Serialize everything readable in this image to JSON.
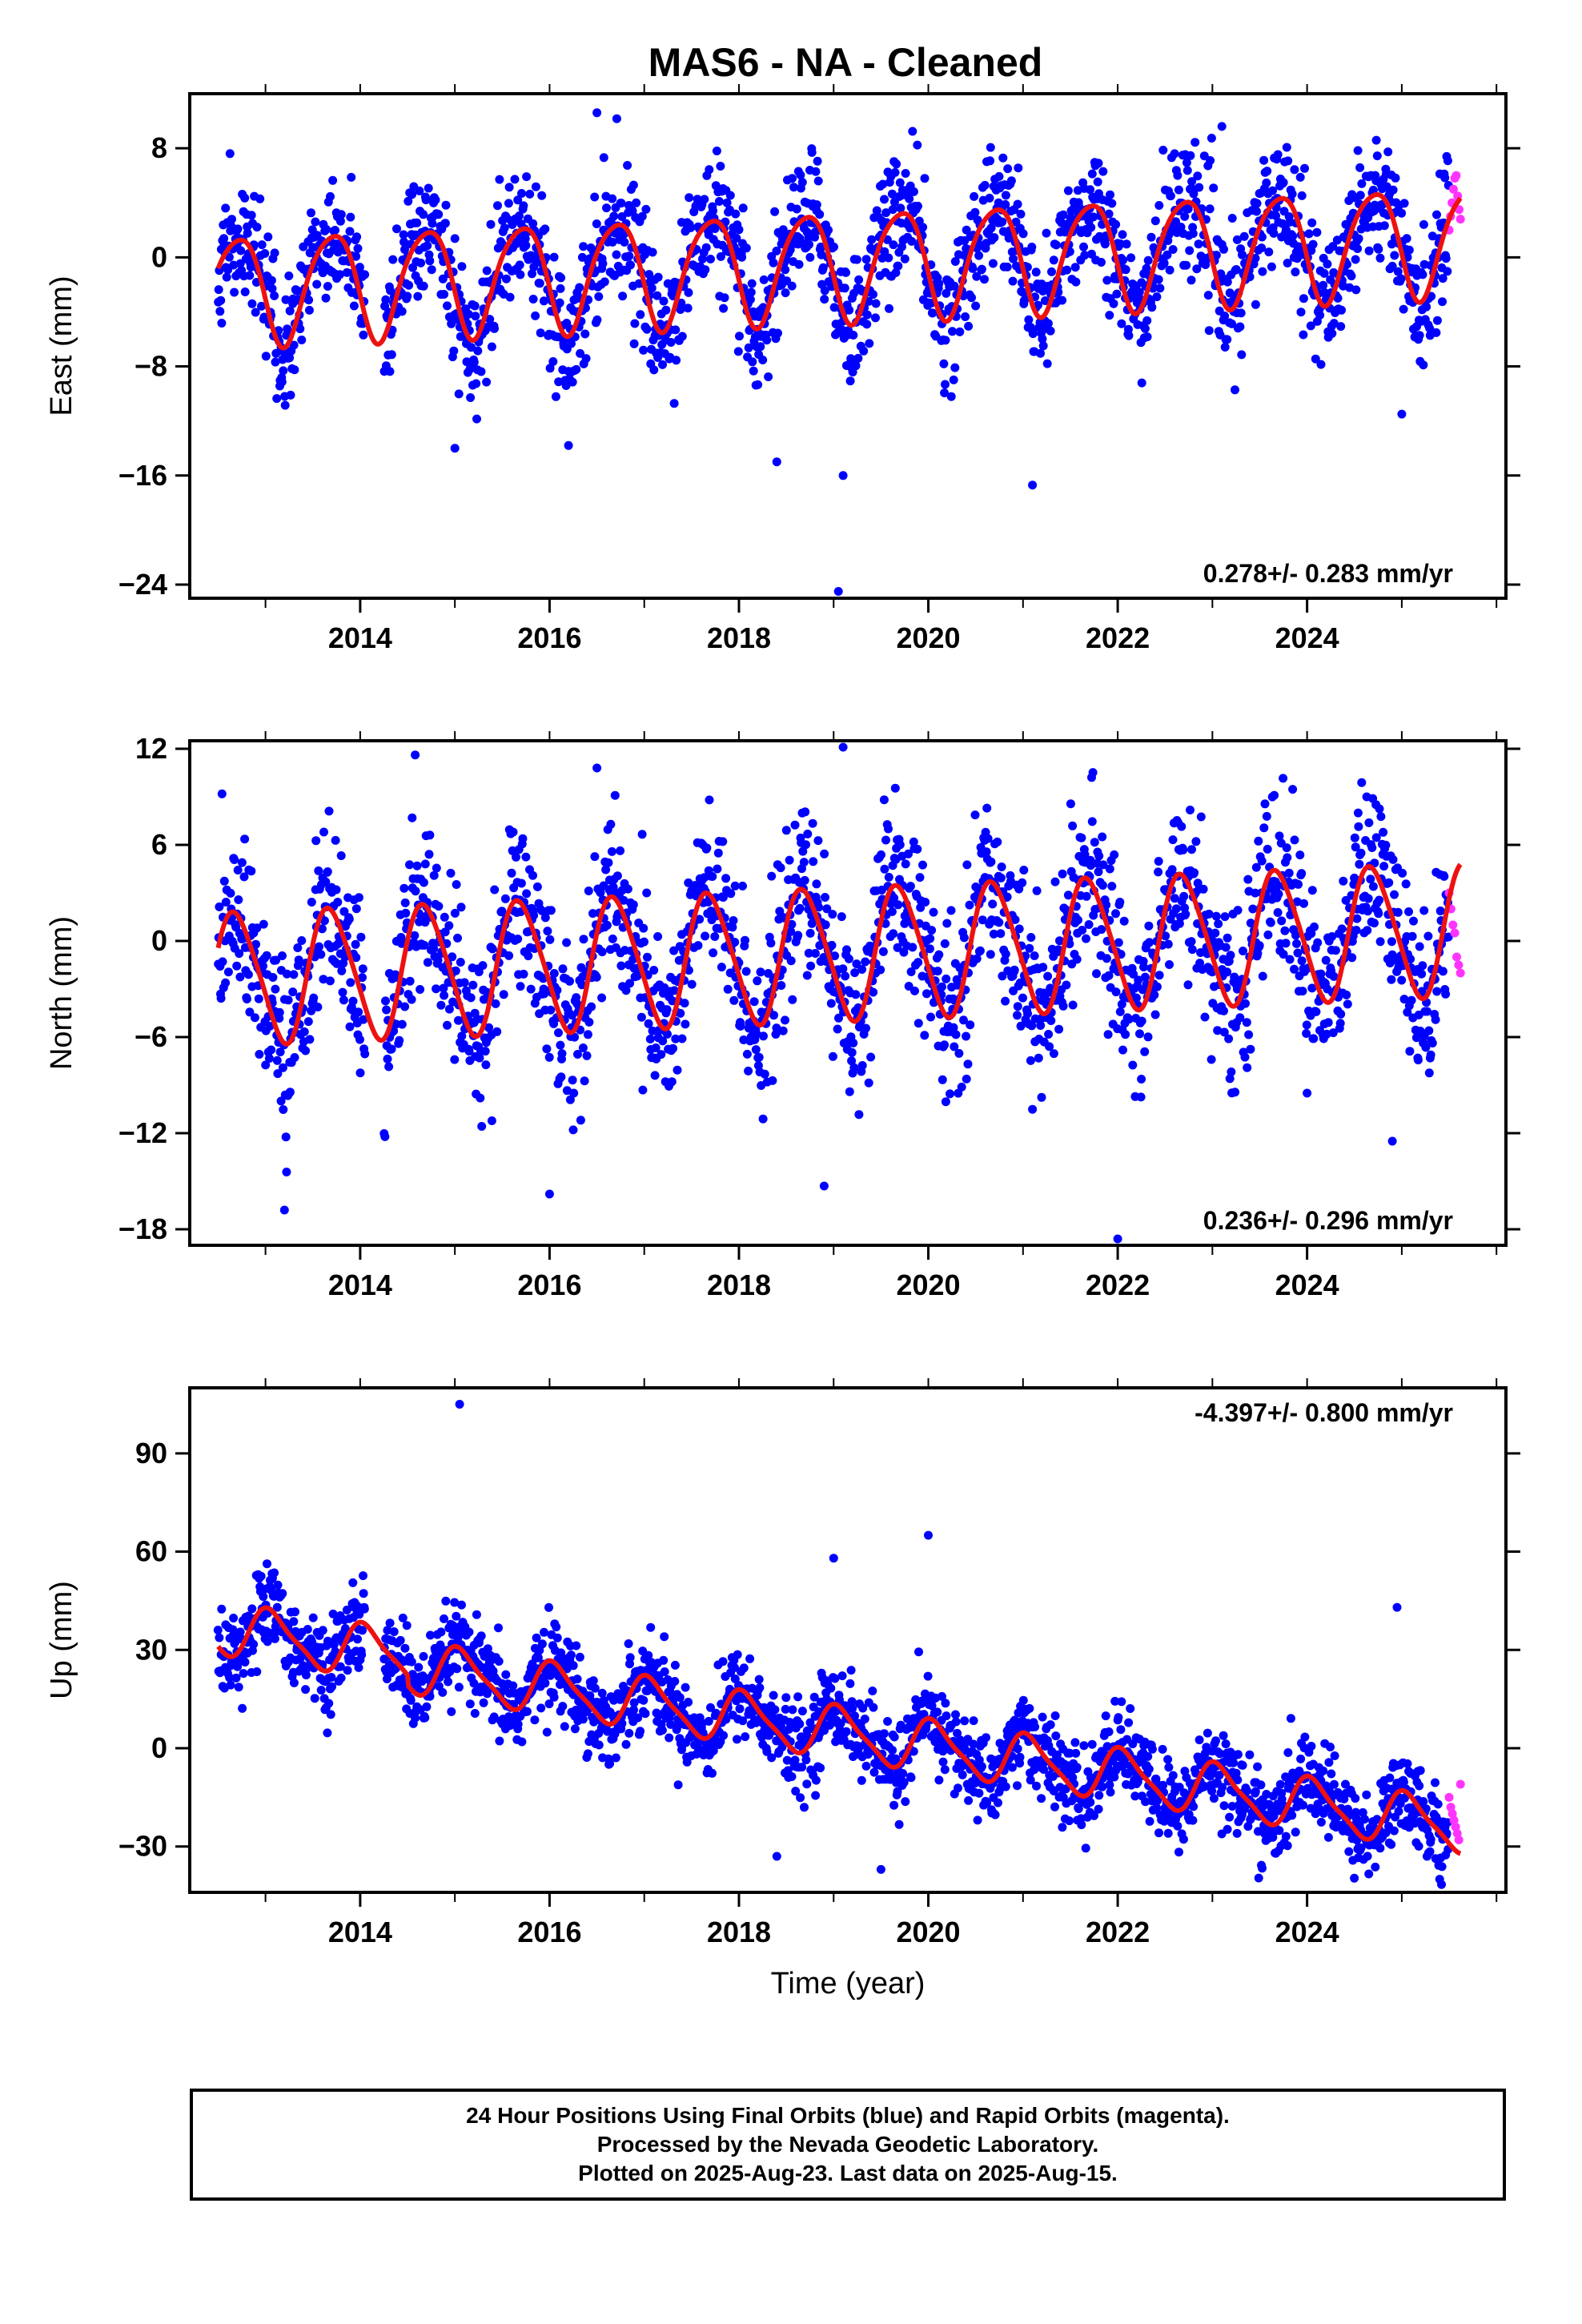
{
  "title": "MAS6  - NA - Cleaned",
  "colors": {
    "final_orbits": "#0000ff",
    "rapid_orbits": "#ff33ff",
    "model": "#ee1111",
    "frame": "#000000"
  },
  "chart_data": [
    {
      "type": "scatter",
      "component": "east",
      "ylabel": "East (mm)",
      "xlabel": "",
      "xlim": [
        2012.2,
        2026.1
      ],
      "ylim": [
        -25,
        12
      ],
      "xticks": [
        2014,
        2016,
        2018,
        2020,
        2022,
        2024
      ],
      "yticks": [
        8,
        0,
        -8,
        -16,
        -24
      ],
      "rate_label": "0.278+/- 0.283 mm/yr",
      "rate_position": "bottom-right",
      "model": {
        "t0": 2019.0,
        "intercept": -0.5,
        "rate_mm_per_yr": 0.278,
        "annual_cos": -1.2,
        "annual_sin": -3.8,
        "semiannual_cos": 0.3,
        "semiannual_sin": -0.5,
        "start": 2012.5,
        "end": 2025.62,
        "jumps": [
          {
            "year": 2014.5,
            "offset": 0.0
          }
        ]
      },
      "cloud": {
        "noise_mm": 2.3,
        "n": 2000,
        "start": 2012.5,
        "end": 2025.5
      },
      "rapid_points": {
        "start": 2025.5,
        "end": 2025.62,
        "values": [
          2,
          3,
          4,
          5,
          5.8,
          6,
          4.5,
          3.5,
          2.8
        ]
      },
      "gaps": [
        [
          2014.05,
          2014.25
        ]
      ],
      "outliers": [
        [
          2018.4,
          -15
        ],
        [
          2019.1,
          -16
        ],
        [
          2019.05,
          -24.5
        ],
        [
          2021.1,
          -16.7
        ],
        [
          2015.0,
          -14
        ],
        [
          2016.2,
          -13.8
        ],
        [
          2016.5,
          10.6
        ],
        [
          2023.1,
          9.6
        ],
        [
          2025.0,
          -11.5
        ]
      ]
    },
    {
      "type": "scatter",
      "component": "north",
      "ylabel": "North (mm)",
      "xlabel": "",
      "xlim": [
        2012.2,
        2026.1
      ],
      "ylim": [
        -19,
        12.5
      ],
      "xticks": [
        2014,
        2016,
        2018,
        2020,
        2022,
        2024
      ],
      "yticks": [
        12,
        6,
        0,
        -6,
        -12,
        -18
      ],
      "rate_label": "0.236+/- 0.296 mm/yr",
      "rate_position": "bottom-right",
      "model": {
        "t0": 2019.0,
        "intercept": -0.8,
        "rate_mm_per_yr": 0.236,
        "annual_cos": -1.5,
        "annual_sin": -3.8,
        "semiannual_cos": 0.4,
        "semiannual_sin": 0.3,
        "start": 2012.5,
        "end": 2025.62,
        "jumps": []
      },
      "cloud": {
        "noise_mm": 2.6,
        "n": 2000,
        "start": 2012.5,
        "end": 2025.5
      },
      "rapid_points": {
        "start": 2025.5,
        "end": 2025.62,
        "values": [
          3,
          2,
          1,
          0.5,
          -1,
          -1.5,
          -2
        ]
      },
      "gaps": [
        [
          2014.05,
          2014.25
        ]
      ],
      "outliers": [
        [
          2019.1,
          12.1
        ],
        [
          2022.0,
          -18.6
        ],
        [
          2013.2,
          -16.8
        ],
        [
          2016.0,
          -15.8
        ],
        [
          2018.9,
          -15.3
        ],
        [
          2016.5,
          10.8
        ],
        [
          2024.0,
          -9.5
        ],
        [
          2024.9,
          -12.5
        ]
      ]
    },
    {
      "type": "scatter",
      "component": "up",
      "ylabel": "Up (mm)",
      "xlabel": "Time (year)",
      "xlim": [
        2012.2,
        2026.1
      ],
      "ylim": [
        -44,
        110
      ],
      "xticks": [
        2014,
        2016,
        2018,
        2020,
        2022,
        2024
      ],
      "yticks": [
        90,
        60,
        30,
        0,
        -30
      ],
      "rate_label": "-4.397+/- 0.800 mm/yr",
      "rate_position": "top-right",
      "model": {
        "t0": 2019.0,
        "intercept": 8.0,
        "rate_mm_per_yr": -4.397,
        "annual_cos": 7.0,
        "annual_sin": 3.0,
        "semiannual_cos": 1.5,
        "semiannual_sin": -1.0,
        "start": 2012.5,
        "end": 2025.62,
        "jumps": [
          {
            "year": 2014.5,
            "offset": -3.0
          }
        ]
      },
      "cloud": {
        "noise_mm": 6.5,
        "n": 2100,
        "start": 2012.5,
        "end": 2025.5
      },
      "rapid_points": {
        "start": 2025.5,
        "end": 2025.62,
        "values": [
          -15,
          -18,
          -20,
          -22,
          -24,
          -26,
          -28,
          -11
        ]
      },
      "gaps": [
        [
          2014.05,
          2014.25
        ]
      ],
      "outliers": [
        [
          2015.05,
          105
        ],
        [
          2019.0,
          58
        ],
        [
          2020.0,
          65
        ],
        [
          2024.95,
          43
        ],
        [
          2018.4,
          -33
        ],
        [
          2019.5,
          -37
        ],
        [
          2025.4,
          -40
        ]
      ]
    }
  ],
  "caption": {
    "line1": "24 Hour Positions Using Final Orbits (blue) and Rapid Orbits (magenta).",
    "line2": "Processed by the Nevada Geodetic Laboratory.",
    "line3": "Plotted on 2025-Aug-23. Last data on 2025-Aug-15."
  }
}
